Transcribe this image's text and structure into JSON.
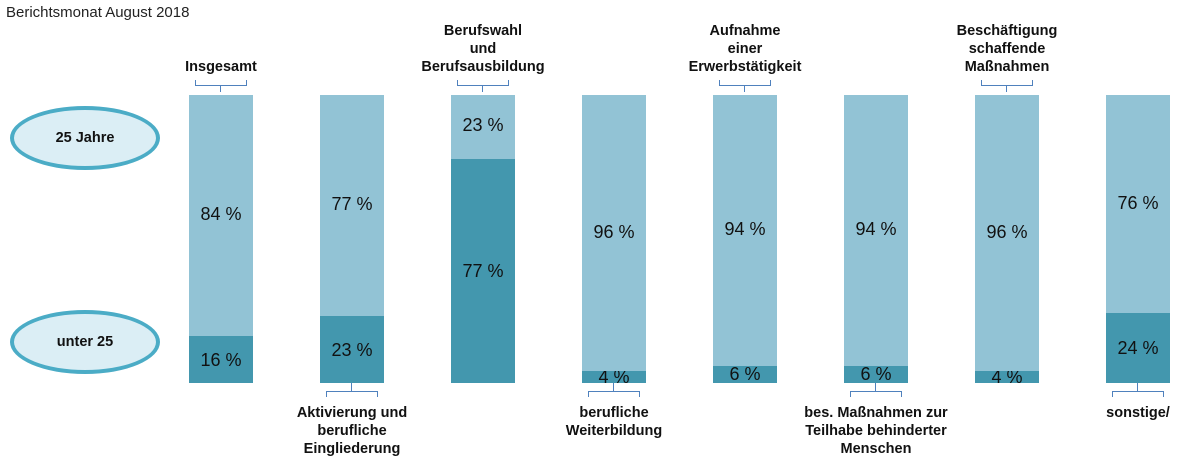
{
  "chart_data": {
    "type": "stacked-bar-100",
    "subtitle": "Berichtsmonat August 2018",
    "categories": [
      "Insgesamt",
      "Aktivierung und\nberufliche\nEingliederung",
      "Berufswahl\nund\nBerufsausbildung",
      "berufliche\nWeiterbildung",
      "Aufnahme\neiner\nErwerbstätigkeit",
      "bes. Maßnahmen zur\nTeilhabe behinderter\nMenschen",
      "Beschäftigung\nschaffende\nMaßnahmen",
      "sonstige/"
    ],
    "ylim": [
      0,
      100
    ],
    "series": [
      {
        "name": "unter 25",
        "color": "#4397ae",
        "values": [
          16,
          23,
          77,
          4,
          6,
          6,
          4,
          24
        ],
        "value_labels": [
          "16 %",
          "23 %",
          "77 %",
          "4 %",
          "6 %",
          "6 %",
          "4 %",
          "24 %"
        ]
      },
      {
        "name": "25 Jahre",
        "color": "#92c3d5",
        "values": [
          84,
          77,
          23,
          96,
          94,
          94,
          96,
          76
        ],
        "value_labels": [
          "84 %",
          "77 %",
          "23 %",
          "96 %",
          "94 %",
          "94 %",
          "96 %",
          "76 %"
        ]
      }
    ]
  }
}
